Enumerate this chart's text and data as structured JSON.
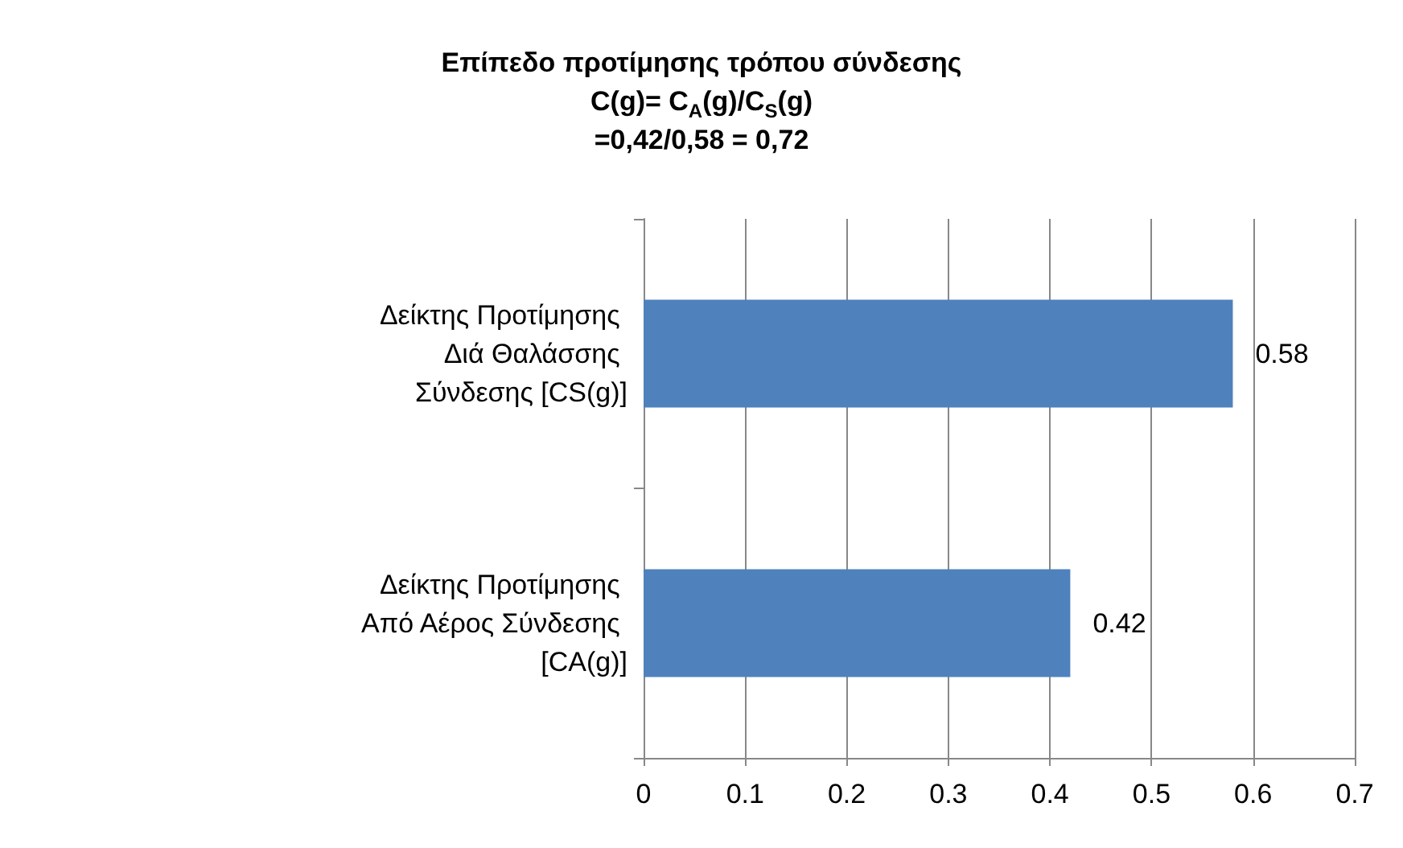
{
  "chart_data": {
    "type": "bar",
    "orientation": "horizontal",
    "title": "Επίπεδο προτίμησης τρόπου σύνδεσης\nC(g)= C$_{A}$(g)/C$_{S}$(g)\n=0,42/0,58 = 0,72",
    "categories": [
      "Δείκτης Προτίμησης Διά Θαλάσσης Σύνδεσης [CS(g)]",
      "Δείκτης Προτίμησης Από Αέρος Σύνδεσης [CA(g)]"
    ],
    "values": [
      0.58,
      0.42
    ],
    "color": "#4f81bd",
    "xlim": [
      0,
      0.7
    ],
    "xticks": [
      0,
      0.1,
      0.2,
      0.3,
      0.4,
      0.5,
      0.6,
      0.7
    ],
    "grid": "x",
    "data_labels": true
  }
}
